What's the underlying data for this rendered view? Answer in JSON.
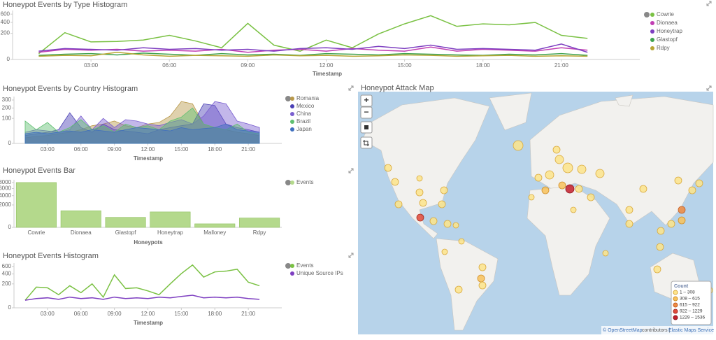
{
  "chart_data": [
    {
      "type": "line",
      "title": "Honeypot Events by Type Histogram",
      "xlabel": "Timestamp",
      "scale": "sqrt",
      "xlim": [
        "00:00",
        "24:00"
      ],
      "xticks": [
        "03:00",
        "06:00",
        "09:00",
        "12:00",
        "15:00",
        "18:00",
        "21:00"
      ],
      "ylim": [
        0,
        700
      ],
      "yticks": [
        0,
        200,
        400,
        600
      ],
      "x": [
        "01:00",
        "02:00",
        "03:00",
        "04:00",
        "05:00",
        "06:00",
        "07:00",
        "08:00",
        "09:00",
        "10:00",
        "11:00",
        "12:00",
        "13:00",
        "14:00",
        "15:00",
        "16:00",
        "17:00",
        "18:00",
        "19:00",
        "20:00",
        "21:00",
        "22:00"
      ],
      "series": [
        {
          "name": "Cowrie",
          "color": "#7ac143",
          "values": [
            10,
            210,
            90,
            95,
            110,
            170,
            100,
            40,
            380,
            60,
            20,
            110,
            40,
            190,
            370,
            560,
            320,
            370,
            350,
            400,
            170,
            130
          ]
        },
        {
          "name": "Dionaea",
          "color": "#c13fb3",
          "values": [
            15,
            30,
            25,
            30,
            20,
            25,
            20,
            30,
            15,
            25,
            30,
            20,
            35,
            25,
            20,
            45,
            20,
            30,
            25,
            20,
            40,
            25
          ]
        },
        {
          "name": "Honeytrap",
          "color": "#7e3fc1",
          "values": [
            20,
            35,
            30,
            25,
            40,
            30,
            35,
            25,
            30,
            20,
            35,
            40,
            30,
            50,
            35,
            60,
            30,
            35,
            30,
            25,
            70,
            15
          ]
        },
        {
          "name": "Glastopf",
          "color": "#3fa34f",
          "values": [
            5,
            8,
            10,
            6,
            12,
            8,
            5,
            10,
            6,
            8,
            5,
            10,
            8,
            6,
            10,
            8,
            6,
            5,
            8,
            6,
            10,
            5
          ]
        },
        {
          "name": "Rdpy",
          "color": "#b7a634",
          "values": [
            3,
            5,
            4,
            15,
            6,
            3,
            5,
            4,
            3,
            6,
            4,
            5,
            3,
            4,
            6,
            5,
            3,
            4,
            5,
            3,
            4,
            3
          ]
        }
      ]
    },
    {
      "type": "area",
      "title": "Honeypot Events by Country Histogram",
      "xlabel": "Timestamp",
      "scale": "sqrt",
      "xlim": [
        "00:00",
        "24:00"
      ],
      "xticks": [
        "03:00",
        "06:00",
        "09:00",
        "12:00",
        "15:00",
        "18:00",
        "21:00"
      ],
      "ylim": [
        0,
        350
      ],
      "yticks": [
        0,
        100,
        200,
        300
      ],
      "x": [
        "01:00",
        "02:00",
        "03:00",
        "04:00",
        "05:00",
        "06:00",
        "07:00",
        "08:00",
        "09:00",
        "10:00",
        "11:00",
        "12:00",
        "13:00",
        "14:00",
        "15:00",
        "16:00",
        "17:00",
        "18:00",
        "19:00",
        "20:00",
        "21:00",
        "22:00"
      ],
      "series": [
        {
          "name": "Romania",
          "color": "#b9994a",
          "values": [
            5,
            8,
            10,
            15,
            20,
            30,
            50,
            60,
            80,
            50,
            40,
            60,
            70,
            120,
            280,
            250,
            60,
            40,
            30,
            20,
            15,
            10
          ]
        },
        {
          "name": "Mexico",
          "color": "#4a3fb5",
          "values": [
            10,
            15,
            20,
            30,
            150,
            40,
            20,
            60,
            30,
            25,
            20,
            15,
            30,
            40,
            50,
            60,
            250,
            230,
            60,
            40,
            30,
            20
          ]
        },
        {
          "name": "China",
          "color": "#7a5fd0",
          "values": [
            20,
            30,
            25,
            20,
            30,
            120,
            30,
            100,
            40,
            90,
            80,
            60,
            50,
            70,
            90,
            60,
            120,
            280,
            250,
            80,
            60,
            40
          ]
        },
        {
          "name": "Brazil",
          "color": "#5fbf70",
          "values": [
            80,
            30,
            70,
            20,
            40,
            90,
            30,
            50,
            20,
            60,
            40,
            50,
            30,
            80,
            110,
            200,
            60,
            40,
            30,
            60,
            20,
            15
          ]
        },
        {
          "name": "Japan",
          "color": "#3f6fbf",
          "values": [
            15,
            20,
            15,
            20,
            25,
            20,
            30,
            25,
            20,
            30,
            40,
            35,
            30,
            25,
            40,
            30,
            35,
            40,
            60,
            30,
            25,
            20
          ]
        }
      ]
    },
    {
      "type": "bar",
      "title": "Honeypot Events Bar",
      "xlabel": "Honeypots",
      "scale": "sqrt",
      "categories": [
        "Cowrie",
        "Dionaea",
        "Glastopf",
        "Honeytrap",
        "Malloney",
        "Rdpy"
      ],
      "ylim": [
        0,
        9000
      ],
      "yticks": [
        0,
        2000,
        4000,
        6000,
        8000
      ],
      "series": [
        {
          "name": "Events",
          "color": "#b4d98c",
          "values": [
            8000,
            1100,
            400,
            950,
            50,
            350
          ]
        }
      ]
    },
    {
      "type": "line",
      "title": "Honeypot Events Histogram",
      "xlabel": "Timestamp",
      "scale": "sqrt",
      "xlim": [
        "00:00",
        "24:00"
      ],
      "xticks": [
        "03:00",
        "06:00",
        "09:00",
        "12:00",
        "15:00",
        "18:00",
        "21:00"
      ],
      "ylim": [
        0,
        700
      ],
      "yticks": [
        0,
        200,
        400,
        600
      ],
      "x": [
        "01:00",
        "02:00",
        "03:00",
        "04:00",
        "05:00",
        "06:00",
        "07:00",
        "08:00",
        "09:00",
        "10:00",
        "11:00",
        "12:00",
        "13:00",
        "14:00",
        "15:00",
        "16:00",
        "17:00",
        "18:00",
        "19:00",
        "20:00",
        "21:00",
        "22:00"
      ],
      "series": [
        {
          "name": "Events",
          "color": "#7ac143",
          "values": [
            20,
            150,
            140,
            60,
            170,
            80,
            200,
            40,
            380,
            130,
            140,
            100,
            60,
            200,
            410,
            640,
            330,
            450,
            470,
            520,
            230,
            170
          ]
        },
        {
          "name": "Unique Source IPs",
          "color": "#7e3fc1",
          "values": [
            20,
            30,
            35,
            25,
            40,
            30,
            35,
            25,
            40,
            30,
            35,
            30,
            40,
            35,
            45,
            55,
            35,
            40,
            35,
            40,
            30,
            25
          ]
        }
      ]
    }
  ],
  "map": {
    "title": "Honeypot Attack Map",
    "controls": [
      "+",
      "−"
    ],
    "legend_title": "Count",
    "legend": [
      "1 – 308",
      "308 – 615",
      "615 – 922",
      "922 – 1229",
      "1229 – 1536"
    ],
    "attribution": [
      "© OpenStreetMap",
      "contributors |",
      "Elastic Maps Service"
    ]
  }
}
